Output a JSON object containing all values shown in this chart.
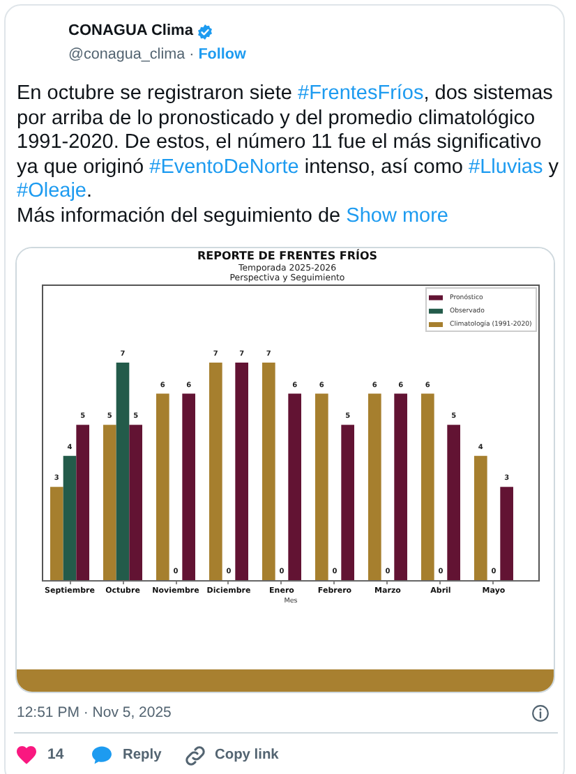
{
  "chart_data": {
    "type": "bar",
    "title": "REPORTE DE FRENTES FRÍOS",
    "subtitle": "Temporada 2025-2026\nPerspectiva y Seguimiento",
    "xlabel": "Mes",
    "categories": [
      "Septiembre",
      "Octubre",
      "Noviembre",
      "Diciembre",
      "Enero",
      "Febrero",
      "Marzo",
      "Abril",
      "Mayo"
    ],
    "series": [
      {
        "name": "Climatología (1991-2020)",
        "color": "#a67f2e",
        "values": [
          3,
          5,
          6,
          7,
          7,
          6,
          6,
          6,
          4
        ]
      },
      {
        "name": "Observado",
        "color": "#235b4a",
        "values": [
          4,
          7,
          0,
          0,
          0,
          0,
          0,
          0,
          0
        ]
      },
      {
        "name": "Pronóstico",
        "color": "#621333",
        "values": [
          5,
          5,
          6,
          7,
          6,
          5,
          6,
          5,
          3
        ]
      }
    ],
    "data_labels": true,
    "legend": "top right",
    "tick_labels": "x",
    "annotations": [
      "CONAGUA Clima",
      "@conagua_clima ·",
      "Follow",
      "En octubre se registraron siete #FrentesFríos, dos sistemas por arriba de lo pronosticado y del promedio climatológico 1991-2020. De estos, el número 11 fue el más significativo ya que originó #EventoDeNorte intenso, así como #Lluvias y #Oleaje.\nMás información del seguimiento de",
      "Show more",
      "12:51 PM · Nov 5, 2025",
      "14",
      "Reply",
      "Copy link"
    ]
  }
}
